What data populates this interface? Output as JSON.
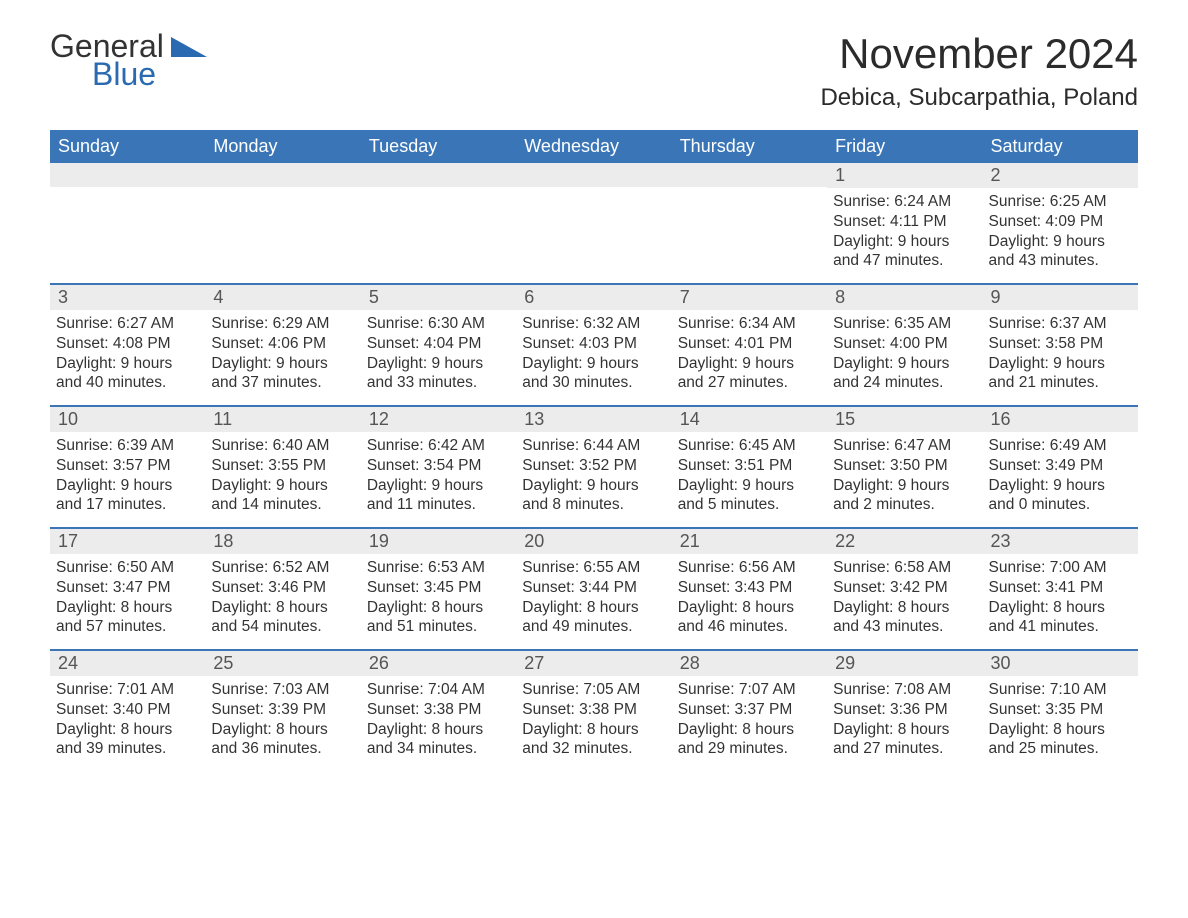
{
  "brand": {
    "line1": "General",
    "line2": "Blue"
  },
  "title": "November 2024",
  "location": "Debica, Subcarpathia, Poland",
  "colors": {
    "header_bg": "#3a76b7",
    "header_text": "#ffffff",
    "daynum_bg": "#ececec",
    "border": "#3a76b7",
    "text": "#333333",
    "brand_blue": "#2a6ab0"
  },
  "day_labels": [
    "Sunday",
    "Monday",
    "Tuesday",
    "Wednesday",
    "Thursday",
    "Friday",
    "Saturday"
  ],
  "weeks": [
    [
      {
        "n": "",
        "sr": "",
        "ss": "",
        "dl": ""
      },
      {
        "n": "",
        "sr": "",
        "ss": "",
        "dl": ""
      },
      {
        "n": "",
        "sr": "",
        "ss": "",
        "dl": ""
      },
      {
        "n": "",
        "sr": "",
        "ss": "",
        "dl": ""
      },
      {
        "n": "",
        "sr": "",
        "ss": "",
        "dl": ""
      },
      {
        "n": "1",
        "sr": "Sunrise: 6:24 AM",
        "ss": "Sunset: 4:11 PM",
        "dl": "Daylight: 9 hours and 47 minutes."
      },
      {
        "n": "2",
        "sr": "Sunrise: 6:25 AM",
        "ss": "Sunset: 4:09 PM",
        "dl": "Daylight: 9 hours and 43 minutes."
      }
    ],
    [
      {
        "n": "3",
        "sr": "Sunrise: 6:27 AM",
        "ss": "Sunset: 4:08 PM",
        "dl": "Daylight: 9 hours and 40 minutes."
      },
      {
        "n": "4",
        "sr": "Sunrise: 6:29 AM",
        "ss": "Sunset: 4:06 PM",
        "dl": "Daylight: 9 hours and 37 minutes."
      },
      {
        "n": "5",
        "sr": "Sunrise: 6:30 AM",
        "ss": "Sunset: 4:04 PM",
        "dl": "Daylight: 9 hours and 33 minutes."
      },
      {
        "n": "6",
        "sr": "Sunrise: 6:32 AM",
        "ss": "Sunset: 4:03 PM",
        "dl": "Daylight: 9 hours and 30 minutes."
      },
      {
        "n": "7",
        "sr": "Sunrise: 6:34 AM",
        "ss": "Sunset: 4:01 PM",
        "dl": "Daylight: 9 hours and 27 minutes."
      },
      {
        "n": "8",
        "sr": "Sunrise: 6:35 AM",
        "ss": "Sunset: 4:00 PM",
        "dl": "Daylight: 9 hours and 24 minutes."
      },
      {
        "n": "9",
        "sr": "Sunrise: 6:37 AM",
        "ss": "Sunset: 3:58 PM",
        "dl": "Daylight: 9 hours and 21 minutes."
      }
    ],
    [
      {
        "n": "10",
        "sr": "Sunrise: 6:39 AM",
        "ss": "Sunset: 3:57 PM",
        "dl": "Daylight: 9 hours and 17 minutes."
      },
      {
        "n": "11",
        "sr": "Sunrise: 6:40 AM",
        "ss": "Sunset: 3:55 PM",
        "dl": "Daylight: 9 hours and 14 minutes."
      },
      {
        "n": "12",
        "sr": "Sunrise: 6:42 AM",
        "ss": "Sunset: 3:54 PM",
        "dl": "Daylight: 9 hours and 11 minutes."
      },
      {
        "n": "13",
        "sr": "Sunrise: 6:44 AM",
        "ss": "Sunset: 3:52 PM",
        "dl": "Daylight: 9 hours and 8 minutes."
      },
      {
        "n": "14",
        "sr": "Sunrise: 6:45 AM",
        "ss": "Sunset: 3:51 PM",
        "dl": "Daylight: 9 hours and 5 minutes."
      },
      {
        "n": "15",
        "sr": "Sunrise: 6:47 AM",
        "ss": "Sunset: 3:50 PM",
        "dl": "Daylight: 9 hours and 2 minutes."
      },
      {
        "n": "16",
        "sr": "Sunrise: 6:49 AM",
        "ss": "Sunset: 3:49 PM",
        "dl": "Daylight: 9 hours and 0 minutes."
      }
    ],
    [
      {
        "n": "17",
        "sr": "Sunrise: 6:50 AM",
        "ss": "Sunset: 3:47 PM",
        "dl": "Daylight: 8 hours and 57 minutes."
      },
      {
        "n": "18",
        "sr": "Sunrise: 6:52 AM",
        "ss": "Sunset: 3:46 PM",
        "dl": "Daylight: 8 hours and 54 minutes."
      },
      {
        "n": "19",
        "sr": "Sunrise: 6:53 AM",
        "ss": "Sunset: 3:45 PM",
        "dl": "Daylight: 8 hours and 51 minutes."
      },
      {
        "n": "20",
        "sr": "Sunrise: 6:55 AM",
        "ss": "Sunset: 3:44 PM",
        "dl": "Daylight: 8 hours and 49 minutes."
      },
      {
        "n": "21",
        "sr": "Sunrise: 6:56 AM",
        "ss": "Sunset: 3:43 PM",
        "dl": "Daylight: 8 hours and 46 minutes."
      },
      {
        "n": "22",
        "sr": "Sunrise: 6:58 AM",
        "ss": "Sunset: 3:42 PM",
        "dl": "Daylight: 8 hours and 43 minutes."
      },
      {
        "n": "23",
        "sr": "Sunrise: 7:00 AM",
        "ss": "Sunset: 3:41 PM",
        "dl": "Daylight: 8 hours and 41 minutes."
      }
    ],
    [
      {
        "n": "24",
        "sr": "Sunrise: 7:01 AM",
        "ss": "Sunset: 3:40 PM",
        "dl": "Daylight: 8 hours and 39 minutes."
      },
      {
        "n": "25",
        "sr": "Sunrise: 7:03 AM",
        "ss": "Sunset: 3:39 PM",
        "dl": "Daylight: 8 hours and 36 minutes."
      },
      {
        "n": "26",
        "sr": "Sunrise: 7:04 AM",
        "ss": "Sunset: 3:38 PM",
        "dl": "Daylight: 8 hours and 34 minutes."
      },
      {
        "n": "27",
        "sr": "Sunrise: 7:05 AM",
        "ss": "Sunset: 3:38 PM",
        "dl": "Daylight: 8 hours and 32 minutes."
      },
      {
        "n": "28",
        "sr": "Sunrise: 7:07 AM",
        "ss": "Sunset: 3:37 PM",
        "dl": "Daylight: 8 hours and 29 minutes."
      },
      {
        "n": "29",
        "sr": "Sunrise: 7:08 AM",
        "ss": "Sunset: 3:36 PM",
        "dl": "Daylight: 8 hours and 27 minutes."
      },
      {
        "n": "30",
        "sr": "Sunrise: 7:10 AM",
        "ss": "Sunset: 3:35 PM",
        "dl": "Daylight: 8 hours and 25 minutes."
      }
    ]
  ]
}
